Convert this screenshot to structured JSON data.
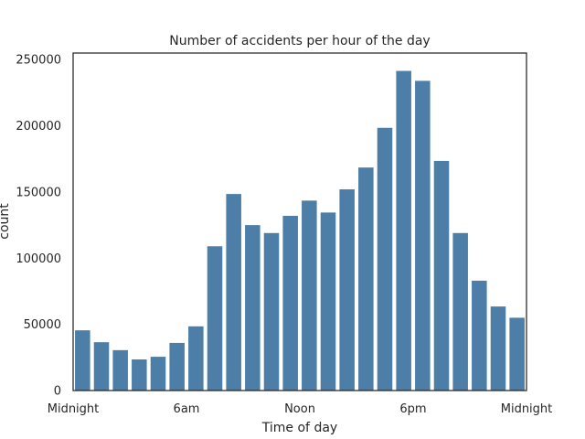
{
  "chart_data": {
    "type": "bar",
    "title": "Number of accidents per hour of the day",
    "xlabel": "Time of day",
    "ylabel": "count",
    "categories": [
      0,
      1,
      2,
      3,
      4,
      5,
      6,
      7,
      8,
      9,
      10,
      11,
      12,
      13,
      14,
      15,
      16,
      17,
      18,
      19,
      20,
      21,
      22,
      23
    ],
    "values": [
      45500,
      36500,
      30500,
      23500,
      25500,
      36000,
      48500,
      109000,
      148500,
      125000,
      119000,
      132000,
      143500,
      134500,
      152000,
      168500,
      198500,
      241500,
      234000,
      173500,
      119000,
      83000,
      63500,
      55000
    ],
    "ylim": [
      0,
      255000
    ],
    "yticks": [
      0,
      50000,
      100000,
      150000,
      200000,
      250000
    ],
    "ytick_labels": [
      "0",
      "50000",
      "100000",
      "150000",
      "200000",
      "250000"
    ],
    "xticks": [
      -0.5,
      5.5,
      11.5,
      17.5,
      23.5
    ],
    "xtick_labels": [
      "Midnight",
      "6am",
      "Noon",
      "6pm",
      "Midnight"
    ],
    "xlim": [
      -0.5,
      23.5
    ],
    "bar_color": "#4c7ea8",
    "grid": false,
    "legend": "none"
  }
}
